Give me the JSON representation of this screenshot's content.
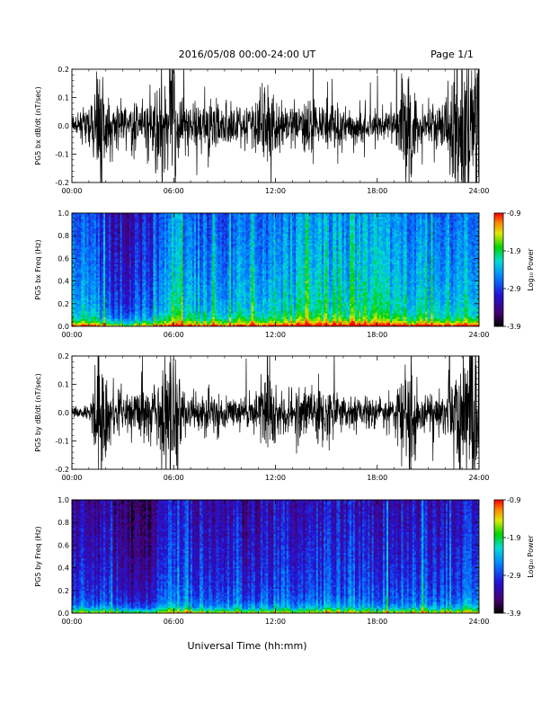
{
  "header": {
    "title": "2016/05/08  00:00-24:00 UT",
    "page": "Page 1/1"
  },
  "xlabel": "Universal Time (hh:mm)",
  "chart_data": [
    {
      "type": "line",
      "ylabel": "PG5 bx dB/dt (nT/sec)",
      "x_ticks": [
        "00:00",
        "06:00",
        "12:00",
        "18:00",
        "24:00"
      ],
      "xlim": [
        0,
        24
      ],
      "ylim": [
        -0.2,
        0.2
      ],
      "y_ticks": [
        "-0.2",
        "-0.1",
        "0.0",
        "0.1",
        "0.2"
      ],
      "activity": [
        [
          0,
          0.03
        ],
        [
          1,
          0.06
        ],
        [
          1.6,
          0.25
        ],
        [
          2,
          0.1
        ],
        [
          3,
          0.07
        ],
        [
          4,
          0.09
        ],
        [
          5,
          0.12
        ],
        [
          5.5,
          0.22
        ],
        [
          6,
          0.28
        ],
        [
          6.5,
          0.1
        ],
        [
          7,
          0.08
        ],
        [
          8,
          0.09
        ],
        [
          9,
          0.08
        ],
        [
          10,
          0.08
        ],
        [
          11,
          0.1
        ],
        [
          11.6,
          0.2
        ],
        [
          12,
          0.1
        ],
        [
          13,
          0.08
        ],
        [
          14,
          0.1
        ],
        [
          15,
          0.11
        ],
        [
          16,
          0.07
        ],
        [
          17,
          0.07
        ],
        [
          18,
          0.06
        ],
        [
          19,
          0.06
        ],
        [
          20,
          0.25
        ],
        [
          20.5,
          0.06
        ],
        [
          21,
          0.07
        ],
        [
          22,
          0.09
        ],
        [
          22.5,
          0.25
        ],
        [
          24,
          0.3
        ]
      ]
    },
    {
      "type": "heatmap",
      "ylabel": "PG5 bx Freq (Hz)",
      "x_ticks": [
        "00:00",
        "06:00",
        "12:00",
        "18:00",
        "24:00"
      ],
      "xlim": [
        0,
        24
      ],
      "ylim": [
        0,
        1.0
      ],
      "y_ticks": [
        "0.0",
        "0.2",
        "0.4",
        "0.6",
        "0.8",
        "1.0"
      ],
      "colorbar": {
        "label": "Log₁₀ Power",
        "ticks": [
          "-0.9",
          "-1.9",
          "-2.9",
          "-3.9"
        ],
        "range": [
          -3.9,
          -0.9
        ]
      },
      "level": [
        [
          0,
          0.55
        ],
        [
          1.5,
          0.45
        ],
        [
          2,
          0.35
        ],
        [
          3,
          0.3
        ],
        [
          4,
          0.35
        ],
        [
          5,
          0.45
        ],
        [
          6,
          0.6
        ],
        [
          7,
          0.5
        ],
        [
          8,
          0.5
        ],
        [
          9,
          0.5
        ],
        [
          10,
          0.5
        ],
        [
          12,
          0.55
        ],
        [
          14,
          0.55
        ],
        [
          16,
          0.6
        ],
        [
          18,
          0.6
        ],
        [
          20,
          0.55
        ],
        [
          22,
          0.55
        ],
        [
          24,
          0.5
        ]
      ]
    },
    {
      "type": "line",
      "ylabel": "PG5 by dB/dt (nT/sec)",
      "x_ticks": [
        "00:00",
        "06:00",
        "12:00",
        "18:00",
        "24:00"
      ],
      "xlim": [
        0,
        24
      ],
      "ylim": [
        -0.2,
        0.2
      ],
      "y_ticks": [
        "-0.2",
        "-0.1",
        "0.0",
        "0.1",
        "0.2"
      ],
      "activity": [
        [
          0,
          0.02
        ],
        [
          1,
          0.03
        ],
        [
          1.7,
          0.25
        ],
        [
          2.2,
          0.12
        ],
        [
          3,
          0.08
        ],
        [
          4,
          0.08
        ],
        [
          5,
          0.1
        ],
        [
          5.5,
          0.25
        ],
        [
          6,
          0.3
        ],
        [
          6.5,
          0.1
        ],
        [
          7,
          0.08
        ],
        [
          8,
          0.08
        ],
        [
          9,
          0.07
        ],
        [
          10,
          0.06
        ],
        [
          11,
          0.09
        ],
        [
          11.6,
          0.2
        ],
        [
          12,
          0.08
        ],
        [
          13,
          0.07
        ],
        [
          14,
          0.09
        ],
        [
          15,
          0.12
        ],
        [
          16,
          0.06
        ],
        [
          17,
          0.06
        ],
        [
          18,
          0.06
        ],
        [
          19,
          0.06
        ],
        [
          20,
          0.22
        ],
        [
          20.5,
          0.05
        ],
        [
          21,
          0.06
        ],
        [
          22,
          0.08
        ],
        [
          22.6,
          0.25
        ],
        [
          24,
          0.3
        ]
      ]
    },
    {
      "type": "heatmap",
      "ylabel": "PG5 by Freq (Hz)",
      "x_ticks": [
        "00:00",
        "06:00",
        "12:00",
        "18:00",
        "24:00"
      ],
      "xlim": [
        0,
        24
      ],
      "ylim": [
        0,
        1.0
      ],
      "y_ticks": [
        "0.0",
        "0.2",
        "0.4",
        "0.6",
        "0.8",
        "1.0"
      ],
      "colorbar": {
        "label": "Log₁₀ Power",
        "ticks": [
          "-0.9",
          "-1.9",
          "-2.9",
          "-3.9"
        ],
        "range": [
          -3.9,
          -0.9
        ]
      },
      "level": [
        [
          0,
          0.35
        ],
        [
          1.5,
          0.3
        ],
        [
          2,
          0.3
        ],
        [
          3,
          0.2
        ],
        [
          4,
          0.2
        ],
        [
          5,
          0.3
        ],
        [
          6,
          0.45
        ],
        [
          7,
          0.35
        ],
        [
          8,
          0.35
        ],
        [
          9,
          0.3
        ],
        [
          10,
          0.3
        ],
        [
          12,
          0.35
        ],
        [
          14,
          0.35
        ],
        [
          16,
          0.35
        ],
        [
          18,
          0.35
        ],
        [
          20,
          0.35
        ],
        [
          22,
          0.35
        ],
        [
          24,
          0.35
        ]
      ]
    }
  ]
}
